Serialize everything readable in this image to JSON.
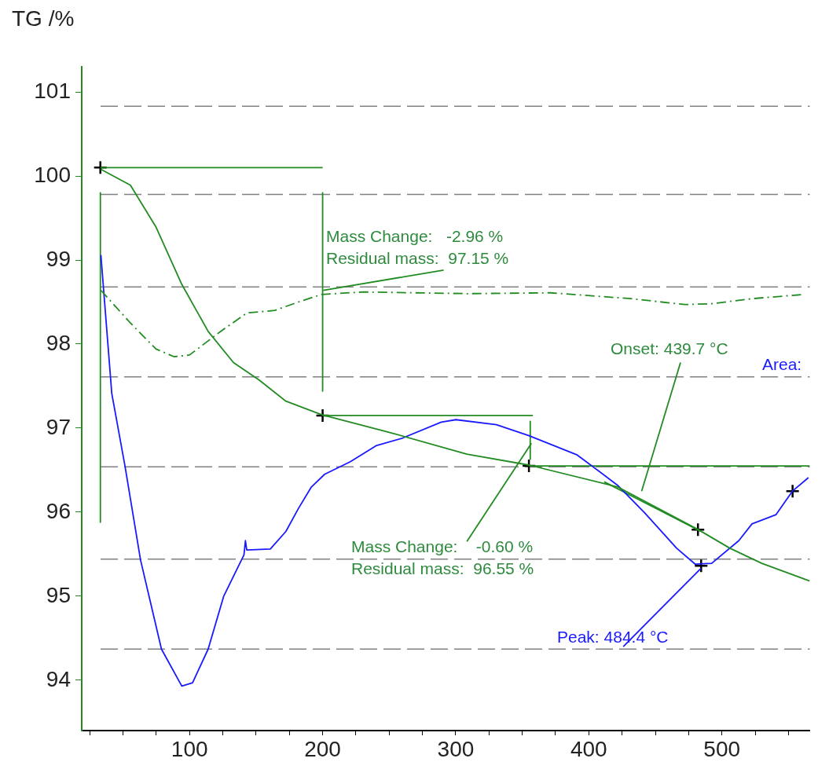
{
  "chart_data": {
    "type": "line",
    "ylabel": "TG /%",
    "xlim": [
      19,
      566
    ],
    "ylim": [
      93.4,
      101.3
    ],
    "xticks": [
      {
        "value": 25,
        "label": null
      },
      {
        "value": 50,
        "label": null
      },
      {
        "value": 75,
        "label": null
      },
      100,
      {
        "value": 125,
        "label": null
      },
      {
        "value": 150,
        "label": null
      },
      {
        "value": 175,
        "label": null
      },
      200,
      {
        "value": 225,
        "label": null
      },
      {
        "value": 250,
        "label": null
      },
      {
        "value": 275,
        "label": null
      },
      300,
      {
        "value": 325,
        "label": null
      },
      {
        "value": 350,
        "label": null
      },
      {
        "value": 375,
        "label": null
      },
      400,
      {
        "value": 425,
        "label": null
      },
      {
        "value": 450,
        "label": null
      },
      {
        "value": 475,
        "label": null
      },
      500,
      {
        "value": 525,
        "label": null
      },
      {
        "value": 550,
        "label": null
      }
    ],
    "yticks": [
      94,
      95,
      96,
      97,
      98,
      99,
      100,
      101
    ],
    "grid": false,
    "legend": false,
    "ref_lines": [
      {
        "axis": "y",
        "value": 100.83,
        "color": "#808080",
        "line_style": "dashed"
      },
      {
        "axis": "y",
        "value": 99.78,
        "color": "#808080",
        "line_style": "dashed"
      },
      {
        "axis": "y",
        "value": 98.68,
        "color": "#808080",
        "line_style": "dashed"
      },
      {
        "axis": "y",
        "value": 97.61,
        "color": "#808080",
        "line_style": "dashed"
      },
      {
        "axis": "y",
        "value": 96.54,
        "color": "#808080",
        "line_style": "dashed"
      },
      {
        "axis": "y",
        "value": 95.44,
        "color": "#808080",
        "line_style": "dashed"
      },
      {
        "axis": "y",
        "value": 94.37,
        "color": "#808080",
        "line_style": "dashed"
      }
    ],
    "series": [
      {
        "type": "line",
        "color": "#228b22",
        "line_style": "solid",
        "marker": "none",
        "x": [
          33.4,
          55.6,
          74.9,
          94.2,
          114,
          133,
          152.5,
          172.4,
          199.2,
          250,
          308.4,
          355,
          421.6,
          482.4,
          506,
          530,
          566
        ],
        "values": [
          100.08,
          99.89,
          99.39,
          98.71,
          98.15,
          97.78,
          97.57,
          97.32,
          97.16,
          96.95,
          96.69,
          96.56,
          96.3,
          95.79,
          95.57,
          95.39,
          95.18
        ]
      },
      {
        "type": "line",
        "color": "#228b22",
        "line_style": "dashed",
        "marker": "none",
        "x": [
          33.4,
          55.6,
          74.9,
          88.3,
          100,
          123.3,
          143.2,
          164,
          181.7,
          199.2,
          230.6,
          308.4,
          371.4,
          431.6,
          472.4,
          492.3,
          522.6,
          561.2
        ],
        "values": [
          98.64,
          98.25,
          97.94,
          97.85,
          97.87,
          98.15,
          98.37,
          98.4,
          98.5,
          98.59,
          98.62,
          98.6,
          98.61,
          98.54,
          98.47,
          98.48,
          98.54,
          98.59
        ]
      },
      {
        "type": "line",
        "color": "#1a1aff",
        "line_style": "solid",
        "marker": "none",
        "x": [
          33.4,
          41.6,
          51.5,
          63.2,
          78.9,
          94.2,
          102.3,
          114,
          125.7,
          140.9,
          142,
          143,
          160.7,
          172.4,
          181.7,
          191.6,
          201.5,
          220.8,
          240.1,
          259.9,
          289.1,
          300.2,
          330.6,
          355.1,
          391.3,
          421.6,
          442,
          466,
          480,
          492.3,
          512.7,
          522.6,
          540.7,
          553,
          565
        ],
        "values": [
          99.06,
          97.41,
          96.55,
          95.43,
          94.37,
          93.93,
          93.97,
          94.37,
          95,
          95.49,
          95.66,
          95.55,
          95.56,
          95.77,
          96.04,
          96.3,
          96.45,
          96.6,
          96.79,
          96.88,
          97.07,
          97.1,
          97.04,
          96.91,
          96.68,
          96.32,
          95.99,
          95.57,
          95.38,
          95.39,
          95.66,
          95.86,
          95.97,
          96.25,
          96.41
        ]
      },
      {
        "type": "line",
        "color": "#228b22",
        "line_style": "solid",
        "marker": "none",
        "x": [
          33,
          33
        ],
        "values": [
          99.8,
          95.88
        ]
      },
      {
        "type": "line",
        "color": "#228b22",
        "line_style": "solid",
        "marker": "none",
        "x": [
          33,
          200
        ],
        "values": [
          100.1,
          100.1
        ]
      },
      {
        "type": "line",
        "color": "#228b22",
        "line_style": "solid",
        "marker": "none",
        "x": [
          200,
          200
        ],
        "values": [
          99.8,
          97.44
        ]
      },
      {
        "type": "line",
        "color": "#228b22",
        "line_style": "solid",
        "marker": "none",
        "x": [
          200,
          358
        ],
        "values": [
          97.15,
          97.15
        ]
      },
      {
        "type": "line",
        "color": "#228b22",
        "line_style": "solid",
        "marker": "none",
        "x": [
          356,
          356
        ],
        "values": [
          97.08,
          96.63
        ]
      },
      {
        "type": "line",
        "color": "#228b22",
        "line_style": "solid",
        "marker": "none",
        "x": [
          355,
          566
        ],
        "values": [
          96.55,
          96.55
        ]
      },
      {
        "type": "line",
        "color": "#228b22",
        "line_style": "solid",
        "marker": "none",
        "x": [
          411.6,
          484.2
        ],
        "values": [
          96.36,
          95.77
        ]
      },
      {
        "type": "line",
        "color": "#228b22",
        "line_style": "solid",
        "marker": "none",
        "x": [
          290.9,
          200.4
        ],
        "values": [
          98.88,
          98.64
        ]
      },
      {
        "type": "line",
        "color": "#228b22",
        "line_style": "solid",
        "marker": "none",
        "x": [
          308.4,
          356.9
        ],
        "values": [
          95.65,
          96.82
        ]
      },
      {
        "type": "line",
        "color": "#228b22",
        "line_style": "solid",
        "marker": "none",
        "x": [
          468.9,
          439.7
        ],
        "values": [
          97.78,
          96.25
        ]
      },
      {
        "type": "line",
        "color": "#1a1aff",
        "line_style": "solid",
        "marker": "none",
        "x": [
          425.9,
          484.2
        ],
        "values": [
          94.4,
          95.33
        ]
      },
      {
        "type": "scatter",
        "color": "#000000",
        "marker": "cross",
        "x": [
          33,
          200,
          355,
          482,
          484.4,
          553.1
        ],
        "values": [
          100.1,
          97.15,
          96.55,
          95.79,
          95.36,
          96.25
        ]
      }
    ],
    "annotations": [
      "Mass Change:   -2.96 %",
      "Residual mass:  97.15 %",
      "Onset: 439.7 °C",
      "Area:",
      "Mass Change:    -0.60 %",
      "Residual mass:  96.55 %",
      "Peak: 484.4 °C"
    ]
  }
}
